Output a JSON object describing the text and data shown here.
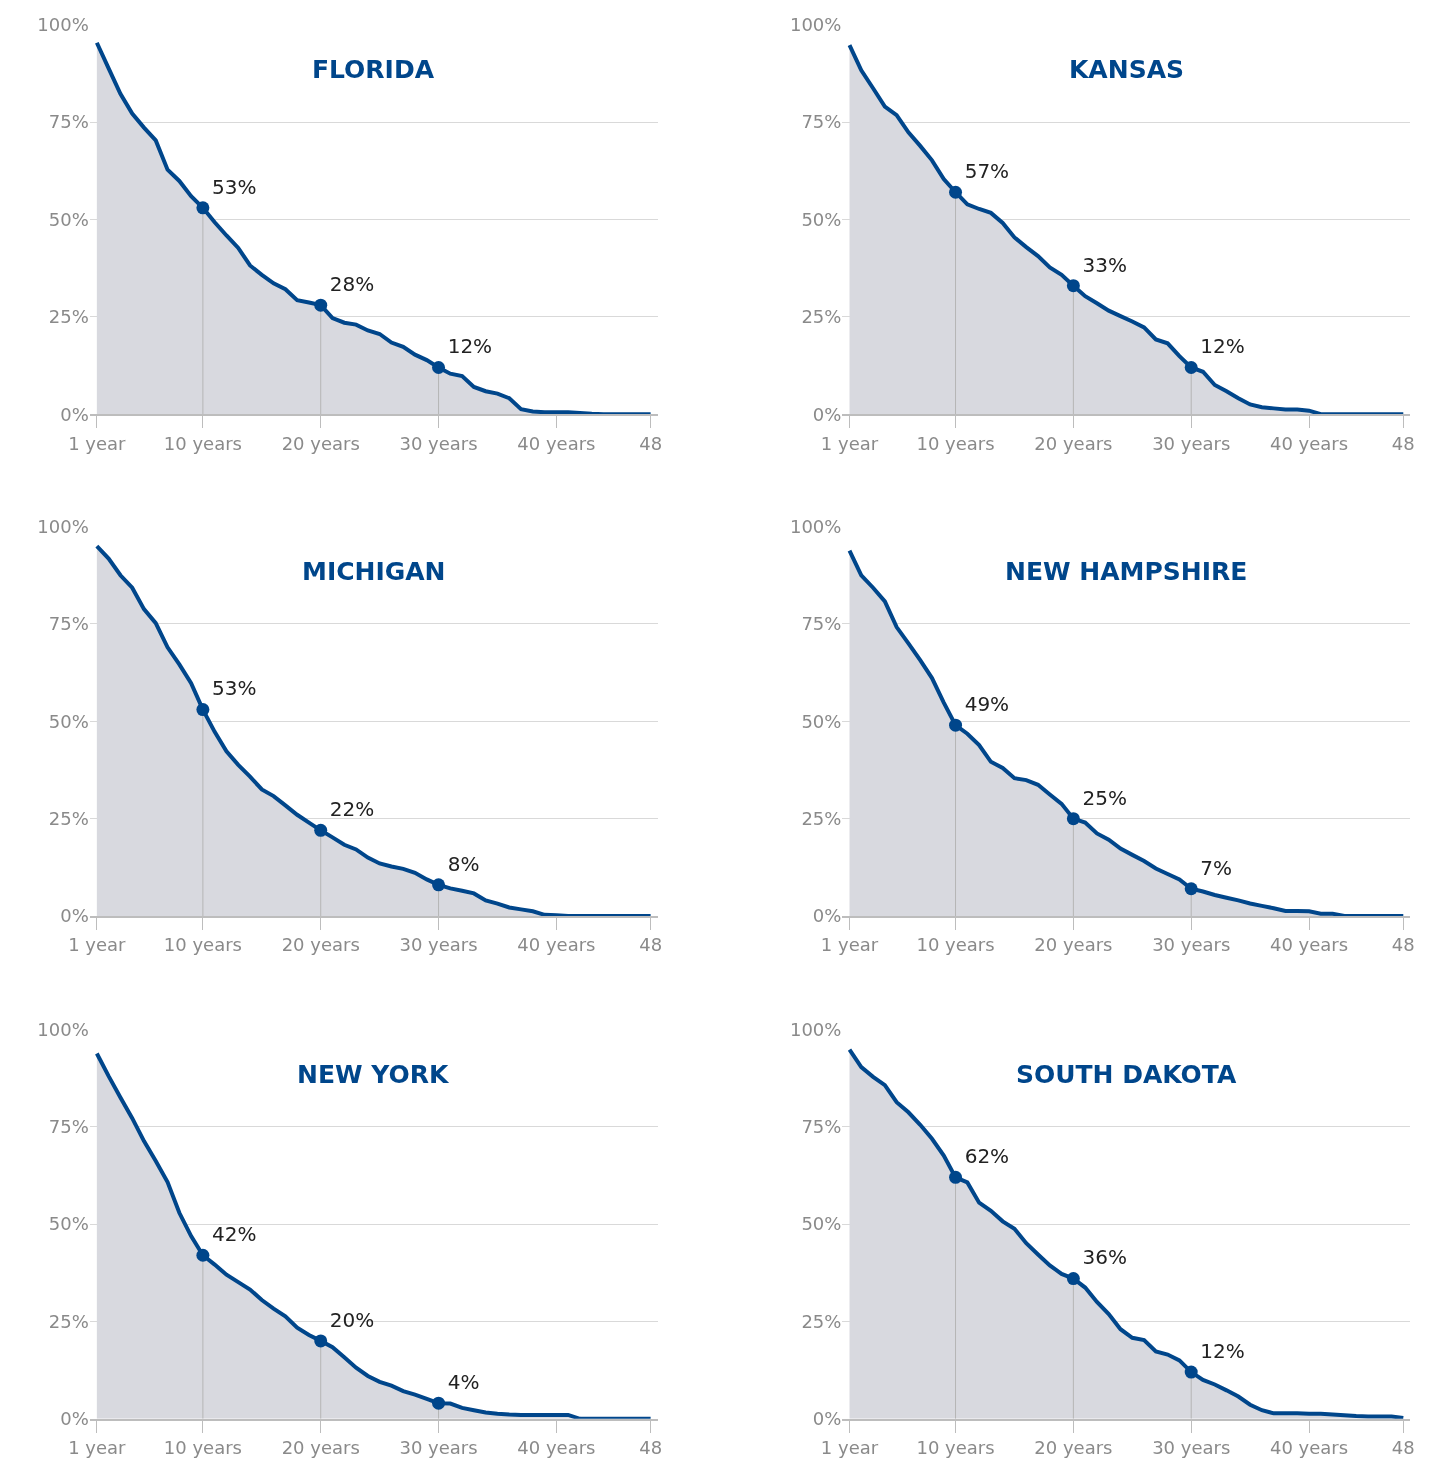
{
  "chart_data": [
    {
      "type": "area",
      "title": "FLORIDA",
      "x": [
        1,
        2,
        3,
        4,
        5,
        6,
        7,
        8,
        9,
        10,
        11,
        12,
        13,
        14,
        15,
        16,
        17,
        18,
        19,
        20,
        21,
        22,
        23,
        24,
        25,
        26,
        27,
        28,
        29,
        30,
        31,
        32,
        33,
        34,
        35,
        36,
        37,
        38,
        39,
        40,
        41,
        42,
        43,
        44,
        45,
        46,
        47,
        48
      ],
      "xlim": [
        0.4,
        48.6
      ],
      "xticks": [
        {
          "value": 1,
          "label": "1 year"
        },
        {
          "value": 10,
          "label": "10 years"
        },
        {
          "value": 20,
          "label": "20 years"
        },
        {
          "value": 30,
          "label": "30 years"
        },
        {
          "value": 40,
          "label": "40 years"
        },
        {
          "value": 48,
          "label": "48"
        }
      ],
      "ylim": [
        0,
        100
      ],
      "yticks": [
        {
          "value": 0,
          "label": "0%"
        },
        {
          "value": 25,
          "label": "25%"
        },
        {
          "value": 50,
          "label": "50%"
        },
        {
          "value": 75,
          "label": "75%"
        },
        {
          "value": 100,
          "label": "100%"
        }
      ],
      "grid": "y",
      "series": [
        {
          "color": "#00468b",
          "values": [
            95.4,
            88.8,
            82.3,
            77.2,
            73.6,
            70.3,
            62.8,
            59.9,
            56,
            53,
            49.3,
            45.9,
            42.7,
            38.2,
            35.8,
            33.6,
            32.1,
            29.3,
            28.7,
            28,
            24.7,
            23.5,
            23,
            21.5,
            20.6,
            18.4,
            17.3,
            15.3,
            13.9,
            12,
            10.4,
            9.8,
            7,
            5.9,
            5.3,
            4.1,
            1.3,
            0.7,
            0.5,
            0.5,
            0.5,
            0.3,
            0.1,
            0,
            0,
            0,
            0,
            0
          ]
        },
        {
          "type": "scatter",
          "color": "#00468b",
          "x": [
            10,
            20,
            30
          ],
          "values": [
            53,
            28,
            12
          ],
          "value_labels": [
            "53%",
            "28%",
            "12%"
          ]
        }
      ]
    },
    {
      "type": "area",
      "title": "KANSAS",
      "x": [
        1,
        2,
        3,
        4,
        5,
        6,
        7,
        8,
        9,
        10,
        11,
        12,
        13,
        14,
        15,
        16,
        17,
        18,
        19,
        20,
        21,
        22,
        23,
        24,
        25,
        26,
        27,
        28,
        29,
        30,
        31,
        32,
        33,
        34,
        35,
        36,
        37,
        38,
        39,
        40,
        41,
        42,
        43,
        44,
        45,
        46,
        47,
        48
      ],
      "xlim": [
        0.4,
        48.6
      ],
      "xticks": [
        {
          "value": 1,
          "label": "1 year"
        },
        {
          "value": 10,
          "label": "10 years"
        },
        {
          "value": 20,
          "label": "20 years"
        },
        {
          "value": 30,
          "label": "30 years"
        },
        {
          "value": 40,
          "label": "40 years"
        },
        {
          "value": 48,
          "label": "48"
        }
      ],
      "ylim": [
        0,
        100
      ],
      "yticks": [
        {
          "value": 0,
          "label": "0%"
        },
        {
          "value": 25,
          "label": "25%"
        },
        {
          "value": 50,
          "label": "50%"
        },
        {
          "value": 75,
          "label": "75%"
        },
        {
          "value": 100,
          "label": "100%"
        }
      ],
      "grid": "y",
      "series": [
        {
          "color": "#00468b",
          "values": [
            94.8,
            88.3,
            83.7,
            79,
            76.8,
            72.4,
            68.9,
            65.2,
            60.4,
            57,
            53.9,
            52.7,
            51.7,
            49.1,
            45.4,
            42.9,
            40.6,
            37.7,
            35.8,
            33,
            30.3,
            28.5,
            26.6,
            25.2,
            23.8,
            22.3,
            19.2,
            18.2,
            14.9,
            12,
            10.9,
            7.5,
            5.9,
            4.1,
            2.5,
            1.8,
            1.5,
            1.2,
            1.2,
            0.9,
            0,
            0,
            0,
            0,
            0,
            0,
            0,
            0
          ]
        },
        {
          "type": "scatter",
          "color": "#00468b",
          "x": [
            10,
            20,
            30
          ],
          "values": [
            57,
            33,
            12
          ],
          "value_labels": [
            "57%",
            "33%",
            "12%"
          ]
        }
      ]
    },
    {
      "type": "area",
      "title": "MICHIGAN",
      "x": [
        1,
        2,
        3,
        4,
        5,
        6,
        7,
        8,
        9,
        10,
        11,
        12,
        13,
        14,
        15,
        16,
        17,
        18,
        19,
        20,
        21,
        22,
        23,
        24,
        25,
        26,
        27,
        28,
        29,
        30,
        31,
        32,
        33,
        34,
        35,
        36,
        37,
        38,
        39,
        40,
        41,
        42,
        43,
        44,
        45,
        46,
        47,
        48
      ],
      "xlim": [
        0.4,
        48.6
      ],
      "xticks": [
        {
          "value": 1,
          "label": "1 year"
        },
        {
          "value": 10,
          "label": "10 years"
        },
        {
          "value": 20,
          "label": "20 years"
        },
        {
          "value": 30,
          "label": "30 years"
        },
        {
          "value": 40,
          "label": "40 years"
        },
        {
          "value": 48,
          "label": "48"
        }
      ],
      "ylim": [
        0,
        100
      ],
      "yticks": [
        {
          "value": 0,
          "label": "0%"
        },
        {
          "value": 25,
          "label": "25%"
        },
        {
          "value": 50,
          "label": "50%"
        },
        {
          "value": 75,
          "label": "75%"
        },
        {
          "value": 100,
          "label": "100%"
        }
      ],
      "grid": "y",
      "series": [
        {
          "color": "#00468b",
          "values": [
            95,
            91.8,
            87.5,
            84.3,
            78.8,
            75.2,
            69,
            64.6,
            59.8,
            53,
            47.3,
            42.3,
            38.8,
            35.8,
            32.5,
            30.8,
            28.4,
            26,
            24,
            22,
            20.2,
            18.3,
            17.1,
            15,
            13.5,
            12.7,
            12.1,
            11.1,
            9.4,
            8,
            7.1,
            6.5,
            5.8,
            4,
            3.2,
            2.2,
            1.7,
            1.2,
            0.3,
            0.2,
            0,
            0,
            0,
            0,
            0,
            0,
            0,
            0
          ]
        },
        {
          "type": "scatter",
          "color": "#00468b",
          "x": [
            10,
            20,
            30
          ],
          "values": [
            53,
            22,
            8
          ],
          "value_labels": [
            "53%",
            "22%",
            "8%"
          ]
        }
      ]
    },
    {
      "type": "area",
      "title": "NEW HAMPSHIRE",
      "x": [
        1,
        2,
        3,
        4,
        5,
        6,
        7,
        8,
        9,
        10,
        11,
        12,
        13,
        14,
        15,
        16,
        17,
        18,
        19,
        20,
        21,
        22,
        23,
        24,
        25,
        26,
        27,
        28,
        29,
        30,
        31,
        32,
        33,
        34,
        35,
        36,
        37,
        38,
        39,
        40,
        41,
        42,
        43,
        44,
        45,
        46,
        47,
        48
      ],
      "xlim": [
        0.4,
        48.6
      ],
      "xticks": [
        {
          "value": 1,
          "label": "1 year"
        },
        {
          "value": 10,
          "label": "10 years"
        },
        {
          "value": 20,
          "label": "20 years"
        },
        {
          "value": 30,
          "label": "30 years"
        },
        {
          "value": 40,
          "label": "40 years"
        },
        {
          "value": 48,
          "label": "48"
        }
      ],
      "ylim": [
        0,
        100
      ],
      "yticks": [
        {
          "value": 0,
          "label": "0%"
        },
        {
          "value": 25,
          "label": "25%"
        },
        {
          "value": 50,
          "label": "50%"
        },
        {
          "value": 75,
          "label": "75%"
        },
        {
          "value": 100,
          "label": "100%"
        }
      ],
      "grid": "y",
      "series": [
        {
          "color": "#00468b",
          "values": [
            93.8,
            87.5,
            84.3,
            80.8,
            74.2,
            70,
            65.7,
            61.1,
            54.8,
            49,
            46.8,
            43.9,
            39.6,
            38,
            35.4,
            34.9,
            33.7,
            31.2,
            28.8,
            25,
            24,
            21.2,
            19.6,
            17.3,
            15.7,
            14.1,
            12.2,
            10.8,
            9.4,
            7,
            6.3,
            5.4,
            4.7,
            4,
            3.2,
            2.6,
            2,
            1.3,
            1.3,
            1.2,
            0.6,
            0.6,
            0,
            0,
            0,
            0,
            0,
            0
          ]
        },
        {
          "type": "scatter",
          "color": "#00468b",
          "x": [
            10,
            20,
            30
          ],
          "values": [
            49,
            25,
            7
          ],
          "value_labels": [
            "49%",
            "25%",
            "7%"
          ]
        }
      ]
    },
    {
      "type": "area",
      "title": "NEW YORK",
      "x": [
        1,
        2,
        3,
        4,
        5,
        6,
        7,
        8,
        9,
        10,
        11,
        12,
        13,
        14,
        15,
        16,
        17,
        18,
        19,
        20,
        21,
        22,
        23,
        24,
        25,
        26,
        27,
        28,
        29,
        30,
        31,
        32,
        33,
        34,
        35,
        36,
        37,
        38,
        39,
        40,
        41,
        42,
        43,
        44,
        45,
        46,
        47,
        48
      ],
      "xlim": [
        0.4,
        48.6
      ],
      "xticks": [
        {
          "value": 1,
          "label": "1 year"
        },
        {
          "value": 10,
          "label": "10 years"
        },
        {
          "value": 20,
          "label": "20 years"
        },
        {
          "value": 30,
          "label": "30 years"
        },
        {
          "value": 40,
          "label": "40 years"
        },
        {
          "value": 48,
          "label": "48"
        }
      ],
      "ylim": [
        0,
        100
      ],
      "yticks": [
        {
          "value": 0,
          "label": "0%"
        },
        {
          "value": 25,
          "label": "25%"
        },
        {
          "value": 50,
          "label": "50%"
        },
        {
          "value": 75,
          "label": "75%"
        },
        {
          "value": 100,
          "label": "100%"
        }
      ],
      "grid": "y",
      "series": [
        {
          "color": "#00468b",
          "values": [
            93.8,
            88,
            82.5,
            77.2,
            71.3,
            66.2,
            60.8,
            52.9,
            46.9,
            42,
            39.6,
            37,
            35.1,
            33.2,
            30.5,
            28.3,
            26.3,
            23.4,
            21.5,
            20,
            18.4,
            15.8,
            13.1,
            11,
            9.5,
            8.5,
            7.1,
            6.2,
            5.1,
            4,
            3.9,
            2.8,
            2.2,
            1.6,
            1.3,
            1.1,
            1,
            1,
            1,
            1,
            1,
            0,
            0,
            0,
            0,
            0,
            0,
            0
          ]
        },
        {
          "type": "scatter",
          "color": "#00468b",
          "x": [
            10,
            20,
            30
          ],
          "values": [
            42,
            20,
            4
          ],
          "value_labels": [
            "42%",
            "20%",
            "4%"
          ]
        }
      ]
    },
    {
      "type": "area",
      "title": "SOUTH DAKOTA",
      "x": [
        1,
        2,
        3,
        4,
        5,
        6,
        7,
        8,
        9,
        10,
        11,
        12,
        13,
        14,
        15,
        16,
        17,
        18,
        19,
        20,
        21,
        22,
        23,
        24,
        25,
        26,
        27,
        28,
        29,
        30,
        31,
        32,
        33,
        34,
        35,
        36,
        37,
        38,
        39,
        40,
        41,
        42,
        43,
        44,
        45,
        46,
        47,
        48
      ],
      "xlim": [
        0.4,
        48.6
      ],
      "xticks": [
        {
          "value": 1,
          "label": "1 year"
        },
        {
          "value": 10,
          "label": "10 years"
        },
        {
          "value": 20,
          "label": "20 years"
        },
        {
          "value": 30,
          "label": "30 years"
        },
        {
          "value": 40,
          "label": "40 years"
        },
        {
          "value": 48,
          "label": "48"
        }
      ],
      "ylim": [
        0,
        100
      ],
      "yticks": [
        {
          "value": 0,
          "label": "0%"
        },
        {
          "value": 25,
          "label": "25%"
        },
        {
          "value": 50,
          "label": "50%"
        },
        {
          "value": 75,
          "label": "75%"
        },
        {
          "value": 100,
          "label": "100%"
        }
      ],
      "grid": "y",
      "series": [
        {
          "color": "#00468b",
          "values": [
            94.8,
            90.3,
            87.8,
            85.7,
            81.3,
            78.7,
            75.5,
            71.9,
            67.6,
            62,
            60.7,
            55.5,
            53.4,
            50.7,
            48.8,
            45.1,
            42.2,
            39.4,
            37.2,
            36,
            33.7,
            30,
            26.9,
            23,
            20.8,
            20.2,
            17.3,
            16.5,
            15,
            12,
            10,
            8.8,
            7.3,
            5.7,
            3.6,
            2.2,
            1.4,
            1.4,
            1.4,
            1.3,
            1.3,
            1.1,
            0.9,
            0.7,
            0.6,
            0.6,
            0.6,
            0.2
          ]
        },
        {
          "type": "scatter",
          "color": "#00468b",
          "x": [
            10,
            20,
            30
          ],
          "values": [
            62,
            36,
            12
          ],
          "value_labels": [
            "62%",
            "36%",
            "12%"
          ]
        }
      ]
    }
  ]
}
